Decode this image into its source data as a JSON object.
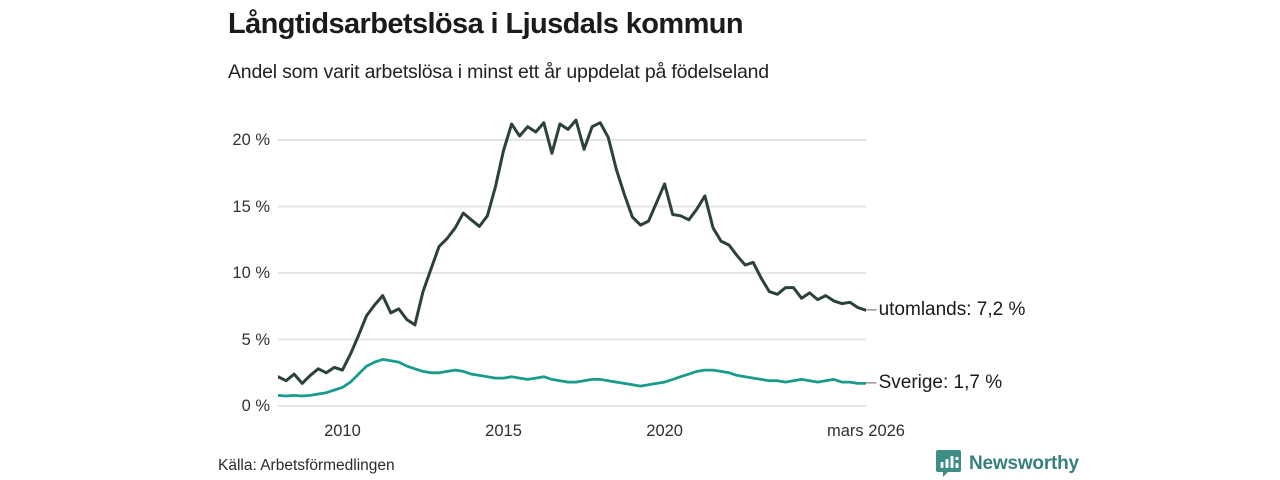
{
  "header": {
    "title": "Långtidsarbetslösa i Ljusdals kommun",
    "subtitle": "Andel som varit arbetslösa i minst ett år uppdelat på födelseland"
  },
  "source": {
    "label": "Källa: Arbetsförmedlingen"
  },
  "branding": {
    "name": "Newsworthy",
    "color": "#37807c",
    "icon": "bar-chart-badge-icon",
    "icon_color": "#3e8e86"
  },
  "chart_data": {
    "type": "line",
    "title": "Långtidsarbetslösa i Ljusdals kommun",
    "subtitle": "Andel som varit arbetslösa i minst ett år uppdelat på födelseland",
    "unit": "%",
    "grid": "horizontal",
    "legend_position": "right-end-labels",
    "xlim": [
      2008,
      2026.25
    ],
    "ylim": [
      0,
      22.6
    ],
    "x": [
      2008.0,
      2008.25,
      2008.5,
      2008.75,
      2009.0,
      2009.25,
      2009.5,
      2009.75,
      2010.0,
      2010.25,
      2010.5,
      2010.75,
      2011.0,
      2011.25,
      2011.5,
      2011.75,
      2012.0,
      2012.25,
      2012.5,
      2012.75,
      2013.0,
      2013.25,
      2013.5,
      2013.75,
      2014.0,
      2014.25,
      2014.5,
      2014.75,
      2015.0,
      2015.25,
      2015.5,
      2015.75,
      2016.0,
      2016.25,
      2016.5,
      2016.75,
      2017.0,
      2017.25,
      2017.5,
      2017.75,
      2018.0,
      2018.25,
      2018.5,
      2018.75,
      2019.0,
      2019.25,
      2019.5,
      2019.75,
      2020.0,
      2020.25,
      2020.5,
      2020.75,
      2021.0,
      2021.25,
      2021.5,
      2021.75,
      2022.0,
      2022.25,
      2022.5,
      2022.75,
      2023.0,
      2023.25,
      2023.5,
      2023.75,
      2024.0,
      2024.25,
      2024.5,
      2024.75,
      2025.0,
      2025.25,
      2025.5,
      2025.75,
      2026.0,
      2026.25
    ],
    "series": [
      {
        "name": "utomlands",
        "label": "utomlands: 7,2 %",
        "last_value": "7,2 %",
        "color": "#2c413c",
        "values": [
          2.2,
          1.9,
          2.4,
          1.7,
          2.3,
          2.8,
          2.5,
          2.9,
          2.7,
          3.9,
          5.3,
          6.8,
          7.6,
          8.3,
          7.0,
          7.3,
          6.5,
          6.1,
          8.6,
          10.3,
          12.0,
          12.6,
          13.4,
          14.5,
          14.0,
          13.5,
          14.3,
          16.5,
          19.2,
          21.2,
          20.3,
          21.0,
          20.6,
          21.3,
          19.0,
          21.2,
          20.8,
          21.5,
          19.3,
          21.0,
          21.3,
          20.2,
          17.8,
          15.9,
          14.2,
          13.6,
          13.9,
          15.3,
          16.7,
          14.4,
          14.3,
          14.0,
          14.8,
          15.8,
          13.4,
          12.4,
          12.1,
          11.3,
          10.6,
          10.8,
          9.6,
          8.6,
          8.4,
          8.9,
          8.9,
          8.1,
          8.5,
          8.0,
          8.3,
          7.9,
          7.7,
          7.8,
          7.4,
          7.2
        ]
      },
      {
        "name": "Sverige",
        "label": "Sverige: 1,7 %",
        "last_value": "1,7 %",
        "color": "#1a9c8a",
        "values": [
          0.8,
          0.75,
          0.8,
          0.75,
          0.8,
          0.9,
          1.0,
          1.2,
          1.4,
          1.8,
          2.4,
          3.0,
          3.3,
          3.5,
          3.4,
          3.3,
          3.0,
          2.8,
          2.6,
          2.5,
          2.5,
          2.6,
          2.7,
          2.6,
          2.4,
          2.3,
          2.2,
          2.1,
          2.1,
          2.2,
          2.1,
          2.0,
          2.1,
          2.2,
          2.0,
          1.9,
          1.8,
          1.8,
          1.9,
          2.0,
          2.0,
          1.9,
          1.8,
          1.7,
          1.6,
          1.5,
          1.6,
          1.7,
          1.8,
          2.0,
          2.2,
          2.4,
          2.6,
          2.7,
          2.7,
          2.6,
          2.5,
          2.3,
          2.2,
          2.1,
          2.0,
          1.9,
          1.9,
          1.8,
          1.9,
          2.0,
          1.9,
          1.8,
          1.9,
          2.0,
          1.8,
          1.8,
          1.7,
          1.7
        ]
      }
    ],
    "y_ticks": [
      {
        "value": 0,
        "label": "0 %"
      },
      {
        "value": 5,
        "label": "5 %"
      },
      {
        "value": 10,
        "label": "10 %"
      },
      {
        "value": 15,
        "label": "15 %"
      },
      {
        "value": 20,
        "label": "20 %"
      }
    ],
    "x_ticks": [
      {
        "value": 2010,
        "label": "2010"
      },
      {
        "value": 2015,
        "label": "2015"
      },
      {
        "value": 2020,
        "label": "2020"
      },
      {
        "value": 2026.25,
        "label": "mars 2026"
      }
    ],
    "gridline_color": "#e5e5e5"
  }
}
